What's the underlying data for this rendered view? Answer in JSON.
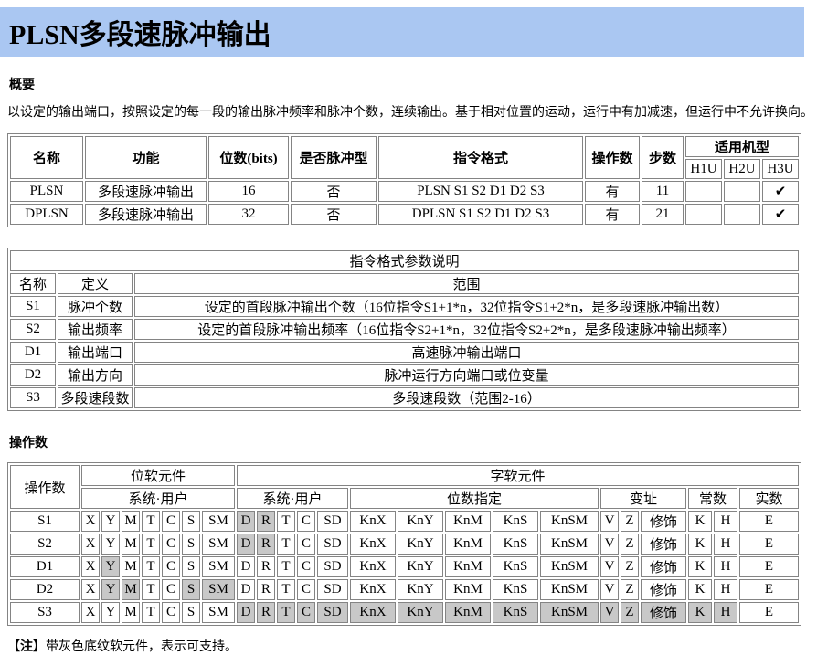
{
  "page": {
    "title": "PLSN多段速脉冲输出",
    "title_band_color": "#aac7f2"
  },
  "overview": {
    "heading": "概要",
    "text": "以设定的输出端口，按照设定的每一段的输出脉冲频率和脉冲个数，连续输出。基于相对位置的运动，运行中有加减速，但运行中不允许换向。"
  },
  "instruction_table": {
    "headers": {
      "name": "名称",
      "function": "功能",
      "bits": "位数(bits)",
      "pulse_type": "是否脉冲型",
      "format": "指令格式",
      "operands": "操作数",
      "steps": "步数",
      "models": "适用机型",
      "model_list": [
        "H1U",
        "H2U",
        "H3U"
      ]
    },
    "rows": [
      [
        "PLSN",
        "多段速脉冲输出",
        "16",
        "否",
        "PLSN S1 S2 D1 D2 S3",
        "有",
        "11",
        "",
        "",
        "✔"
      ],
      [
        "DPLSN",
        "多段速脉冲输出",
        "32",
        "否",
        "DPLSN S1 S2 D1 D2 S3",
        "有",
        "21",
        "",
        "",
        "✔"
      ]
    ]
  },
  "param_table": {
    "title": "指令格式参数说明",
    "headers": [
      "名称",
      "定义",
      "范围"
    ],
    "rows": [
      [
        "S1",
        "脉冲个数",
        "设定的首段脉冲输出个数（16位指令S1+1*n，32位指令S1+2*n，是多段速脉冲输出数）"
      ],
      [
        "S2",
        "输出频率",
        "设定的首段脉冲输出频率（16位指令S2+1*n，32位指令S2+2*n，是多段速脉冲输出频率）"
      ],
      [
        "D1",
        "输出端口",
        "高速脉冲输出端口"
      ],
      [
        "D2",
        "输出方向",
        "脉冲运行方向端口或位变量"
      ],
      [
        "S3",
        "多段速段数",
        "多段速段数（范围2-16）"
      ]
    ]
  },
  "operand_section": {
    "heading": "操作数",
    "table": {
      "header": {
        "operand": "操作数",
        "bit_group": "位软元件",
        "word_group": "字软元件",
        "bit_system_user": "系统·用户",
        "word_system_user": "系统·用户",
        "bits_specified": "位数指定",
        "index": "变址",
        "constant": "常数",
        "real": "实数"
      },
      "device_columns": [
        "X",
        "Y",
        "M",
        "T",
        "C",
        "S",
        "SM",
        "D",
        "R",
        "T",
        "C",
        "SD",
        "KnX",
        "KnY",
        "KnM",
        "KnS",
        "KnSM",
        "V",
        "Z",
        "修饰",
        "K",
        "H",
        "E"
      ],
      "highlight_color": "#c8c8c8",
      "rows": [
        {
          "operand": "S1",
          "highlighted": [
            7,
            8
          ]
        },
        {
          "operand": "S2",
          "highlighted": [
            7,
            8
          ]
        },
        {
          "operand": "D1",
          "highlighted": [
            1
          ]
        },
        {
          "operand": "D2",
          "highlighted": [
            1,
            2,
            5,
            6
          ]
        },
        {
          "operand": "S3",
          "highlighted": [
            7,
            8,
            9,
            10,
            11,
            12,
            13,
            14,
            15,
            16,
            17,
            18,
            19,
            20,
            21
          ]
        }
      ]
    }
  },
  "note": {
    "label": "【注】",
    "text": "带灰色底纹软元件，表示可支持。"
  }
}
